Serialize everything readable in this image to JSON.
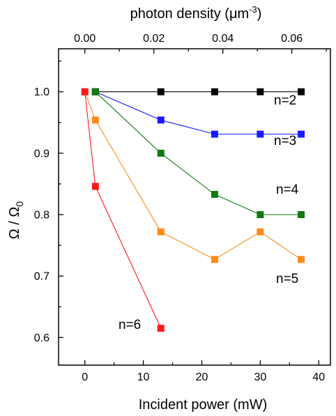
{
  "chart_data": {
    "type": "scatter",
    "xlabel": "Incident power (mW)",
    "ylabel_base": "Ω / Ω",
    "ylabel_sub": "0",
    "top_xlabel_prefix": "photon density (",
    "top_xlabel_unit": "μm",
    "top_xlabel_sup": "-3",
    "top_xlabel_suffix": ")",
    "xlim": [
      -4.5,
      42
    ],
    "ylim": [
      0.555,
      1.07
    ],
    "x_ticks": [
      0,
      10,
      20,
      30,
      40
    ],
    "y_ticks": [
      0.6,
      0.7,
      0.8,
      0.9,
      1.0
    ],
    "top_x_ticks": [
      {
        "label": "0.00",
        "x": 0
      },
      {
        "label": "0.02",
        "x": 11.8
      },
      {
        "label": "0.04",
        "x": 23.6
      },
      {
        "label": "0.06",
        "x": 35.4
      }
    ],
    "series": [
      {
        "name": "n=2",
        "color": "#000000",
        "x": [
          1.8,
          13,
          22.2,
          30,
          37
        ],
        "y": [
          1.0,
          1.0,
          1.0,
          1.0,
          1.0
        ]
      },
      {
        "name": "n=3",
        "color": "#1a1aff",
        "x": [
          1.8,
          13,
          22.2,
          30,
          37
        ],
        "y": [
          1.0,
          0.954,
          0.931,
          0.931,
          0.931
        ]
      },
      {
        "name": "n=4",
        "color": "#117a11",
        "x": [
          1.8,
          13,
          22.2,
          30,
          37
        ],
        "y": [
          1.0,
          0.9,
          0.833,
          0.8,
          0.8
        ]
      },
      {
        "name": "n=5",
        "color": "#ff8c1a",
        "x": [
          0,
          1.8,
          13,
          22.2,
          30,
          37
        ],
        "y": [
          1.0,
          0.954,
          0.772,
          0.727,
          0.772,
          0.727
        ]
      },
      {
        "name": "n=6",
        "color": "#ff1a1a",
        "x": [
          0,
          1.8,
          13
        ],
        "y": [
          1.0,
          0.846,
          0.615
        ]
      }
    ],
    "legend": "inline labels"
  },
  "labels": {
    "n2": "n=2",
    "n3": "n=3",
    "n4": "n=4",
    "n5": "n=5",
    "n6": "n=6"
  }
}
